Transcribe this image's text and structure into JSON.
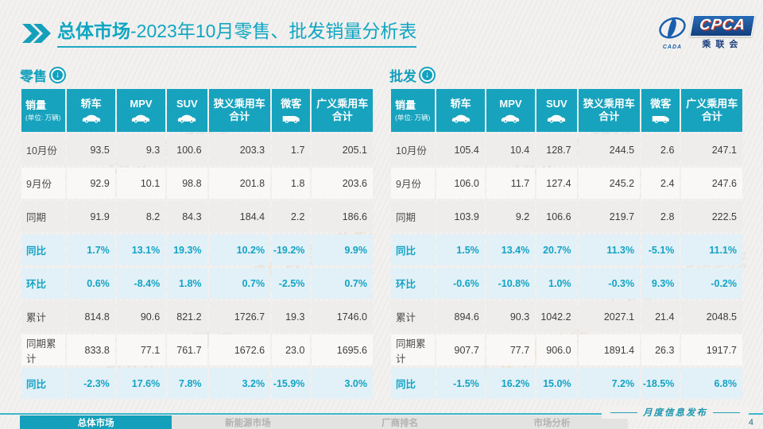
{
  "title": {
    "section": "总体市场",
    "rest": "-2023年10月零售、批发销量分析表"
  },
  "logo": {
    "cpca": "CPCA",
    "sub": "乘联会",
    "cada": "CADA"
  },
  "watermark": "CPCA 乘联会",
  "colors": {
    "primary_teal": "#17a2bd",
    "title_teal": "#0fa6c2",
    "pct_text": "#14a3c4",
    "pct_row_bg": "#e1f1f7",
    "row_gray": "#eeedec",
    "row_white": "#f9f8f7",
    "logo_blue": "#1a55a0",
    "logo_red_shadow": "#c03a2b"
  },
  "tables": [
    {
      "id": "retail",
      "section_label": "零售",
      "corner": {
        "title": "销量",
        "unit": "(单位: 万辆)"
      },
      "columns": [
        {
          "label": "轿车",
          "label2": "",
          "icon": "sedan-icon"
        },
        {
          "label": "MPV",
          "label2": "",
          "icon": "mpv-icon"
        },
        {
          "label": "SUV",
          "label2": "",
          "icon": "suv-icon"
        },
        {
          "label": "狭义乘用车",
          "label2": "合计",
          "icon": ""
        },
        {
          "label": "微客",
          "label2": "",
          "icon": "microvan-icon"
        },
        {
          "label": "广义乘用车",
          "label2": "合计",
          "icon": ""
        }
      ],
      "rows": [
        {
          "label": "10月份",
          "type": "a",
          "values": [
            "93.5",
            "9.3",
            "100.6",
            "203.3",
            "1.7",
            "205.1"
          ]
        },
        {
          "label": "9月份",
          "type": "b",
          "values": [
            "92.9",
            "10.1",
            "98.8",
            "201.8",
            "1.8",
            "203.6"
          ]
        },
        {
          "label": "同期",
          "type": "a",
          "values": [
            "91.9",
            "8.2",
            "84.3",
            "184.4",
            "2.2",
            "186.6"
          ]
        },
        {
          "label": "同比",
          "type": "pct",
          "values": [
            "1.7%",
            "13.1%",
            "19.3%",
            "10.2%",
            "-19.2%",
            "9.9%"
          ]
        },
        {
          "label": "环比",
          "type": "pct",
          "values": [
            "0.6%",
            "-8.4%",
            "1.8%",
            "0.7%",
            "-2.5%",
            "0.7%"
          ]
        },
        {
          "label": "累计",
          "type": "a",
          "values": [
            "814.8",
            "90.6",
            "821.2",
            "1726.7",
            "19.3",
            "1746.0"
          ]
        },
        {
          "label": "同期累计",
          "type": "b",
          "values": [
            "833.8",
            "77.1",
            "761.7",
            "1672.6",
            "23.0",
            "1695.6"
          ]
        },
        {
          "label": "同比",
          "type": "pct",
          "values": [
            "-2.3%",
            "17.6%",
            "7.8%",
            "3.2%",
            "-15.9%",
            "3.0%"
          ]
        }
      ]
    },
    {
      "id": "wholesale",
      "section_label": "批发",
      "corner": {
        "title": "销量",
        "unit": "(单位: 万辆)"
      },
      "columns": [
        {
          "label": "轿车",
          "label2": "",
          "icon": "sedan-icon"
        },
        {
          "label": "MPV",
          "label2": "",
          "icon": "mpv-icon"
        },
        {
          "label": "SUV",
          "label2": "",
          "icon": "suv-icon"
        },
        {
          "label": "狭义乘用车",
          "label2": "合计",
          "icon": ""
        },
        {
          "label": "微客",
          "label2": "",
          "icon": "microvan-icon"
        },
        {
          "label": "广义乘用车",
          "label2": "合计",
          "icon": ""
        }
      ],
      "rows": [
        {
          "label": "10月份",
          "type": "a",
          "values": [
            "105.4",
            "10.4",
            "128.7",
            "244.5",
            "2.6",
            "247.1"
          ]
        },
        {
          "label": "9月份",
          "type": "b",
          "values": [
            "106.0",
            "11.7",
            "127.4",
            "245.2",
            "2.4",
            "247.6"
          ]
        },
        {
          "label": "同期",
          "type": "a",
          "values": [
            "103.9",
            "9.2",
            "106.6",
            "219.7",
            "2.8",
            "222.5"
          ]
        },
        {
          "label": "同比",
          "type": "pct",
          "values": [
            "1.5%",
            "13.4%",
            "20.7%",
            "11.3%",
            "-5.1%",
            "11.1%"
          ]
        },
        {
          "label": "环比",
          "type": "pct",
          "values": [
            "-0.6%",
            "-10.8%",
            "1.0%",
            "-0.3%",
            "9.3%",
            "-0.2%"
          ]
        },
        {
          "label": "累计",
          "type": "a",
          "values": [
            "894.6",
            "90.3",
            "1042.2",
            "2027.1",
            "21.4",
            "2048.5"
          ]
        },
        {
          "label": "同期累计",
          "type": "b",
          "values": [
            "907.7",
            "77.7",
            "906.0",
            "1891.4",
            "26.3",
            "1917.7"
          ]
        },
        {
          "label": "同比",
          "type": "pct",
          "values": [
            "-1.5%",
            "16.2%",
            "15.0%",
            "7.2%",
            "-18.5%",
            "6.8%"
          ]
        }
      ]
    }
  ],
  "footer": {
    "tabs": [
      {
        "id": "overall-market",
        "label": "总体市场",
        "active": true
      },
      {
        "id": "nev-market",
        "label": "新能源市场",
        "active": false
      },
      {
        "id": "oem-ranking",
        "label": "厂商排名",
        "active": false
      },
      {
        "id": "market-analysis",
        "label": "市场分析",
        "active": false
      }
    ],
    "publication": "月度信息发布",
    "page": "4"
  }
}
